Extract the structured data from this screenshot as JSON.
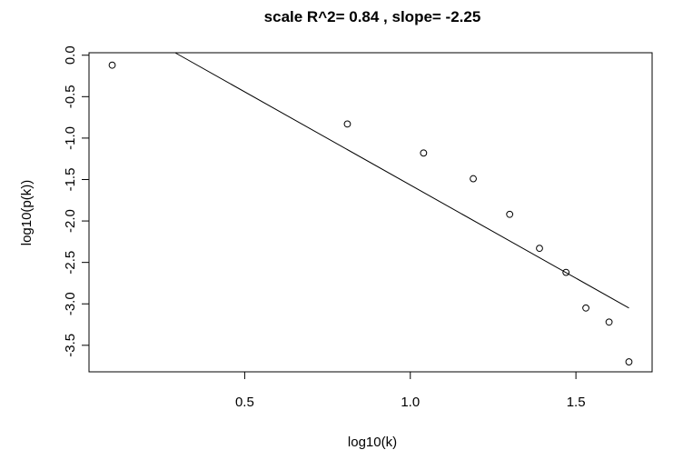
{
  "chart_data": {
    "type": "scatter",
    "title": "scale R^2= 0.84 , slope= -2.25",
    "xlabel": "log10(k)",
    "ylabel": "log10(p(k))",
    "xlim": [
      0.03,
      1.73
    ],
    "ylim": [
      -3.82,
      0.03
    ],
    "x_ticks": [
      0.5,
      1.0,
      1.5
    ],
    "x_tick_labels": [
      "0.5",
      "1.0",
      "1.5"
    ],
    "y_ticks": [
      0.0,
      -0.5,
      -1.0,
      -1.5,
      -2.0,
      -2.5,
      -3.0,
      -3.5
    ],
    "y_tick_labels": [
      "0.0",
      "-0.5",
      "-1.0",
      "-1.5",
      "-2.0",
      "-2.5",
      "-3.0",
      "-3.5"
    ],
    "points": [
      {
        "x": 0.1,
        "y": -0.12
      },
      {
        "x": 0.81,
        "y": -0.83
      },
      {
        "x": 1.04,
        "y": -1.18
      },
      {
        "x": 1.19,
        "y": -1.49
      },
      {
        "x": 1.3,
        "y": -1.92
      },
      {
        "x": 1.39,
        "y": -2.33
      },
      {
        "x": 1.47,
        "y": -2.62
      },
      {
        "x": 1.53,
        "y": -3.05
      },
      {
        "x": 1.6,
        "y": -3.22
      },
      {
        "x": 1.66,
        "y": -3.7
      }
    ],
    "fit_line": {
      "x": [
        0.29,
        1.66
      ],
      "y": [
        0.03,
        -3.05
      ]
    },
    "grid": false,
    "point_style": "open-circle",
    "colors": {
      "points": "#000000",
      "line": "#000000",
      "axes": "#000000"
    }
  }
}
